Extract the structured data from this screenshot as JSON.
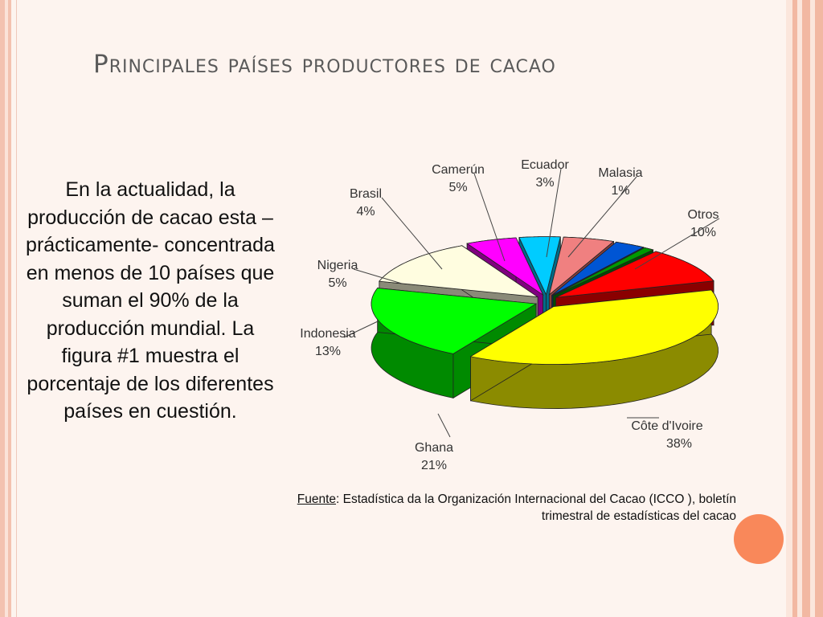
{
  "slide": {
    "title": "Principales países productores de cacao",
    "body": "En la actualidad, la producción de cacao esta –prácticamente- concentrada en menos de 10 países que suman el 90% de la producción mundial. La figura #1 muestra el porcentaje de los diferentes países en cuestión.",
    "source_label": "Fuente",
    "source_text": ": Estadística da la Organización Internacional del Cacao (ICCO ), boletín trimestral de estadísticas del cacao"
  },
  "chart_data": {
    "type": "pie",
    "title": "",
    "unit": "%",
    "slices": [
      {
        "name": "Côte d'Ivoire",
        "value": 38,
        "label": "38%",
        "color": "#ffff00",
        "side_color": "#8b8b00"
      },
      {
        "name": "Ghana",
        "value": 21,
        "label": "21%",
        "color": "#00ff00",
        "side_color": "#008a00"
      },
      {
        "name": "Indonesia",
        "value": 13,
        "label": "13%",
        "color": "#fffde0",
        "side_color": "#8a8a78"
      },
      {
        "name": "Nigeria",
        "value": 5,
        "label": "5%",
        "color": "#ff00ff",
        "side_color": "#800080"
      },
      {
        "name": "Brasil",
        "value": 4,
        "label": "4%",
        "color": "#00ccff",
        "side_color": "#006b87"
      },
      {
        "name": "Camerún",
        "value": 5,
        "label": "5%",
        "color": "#f08080",
        "side_color": "#8a3e3e"
      },
      {
        "name": "Ecuador",
        "value": 3,
        "label": "3%",
        "color": "#0055d4",
        "side_color": "#002a6b"
      },
      {
        "name": "Malasia",
        "value": 1,
        "label": "1%",
        "color": "#009a00",
        "side_color": "#004d00"
      },
      {
        "name": "Otros",
        "value": 10,
        "label": "10%",
        "color": "#ff0000",
        "side_color": "#8a0000"
      }
    ],
    "exploded": true,
    "three_d": true
  }
}
